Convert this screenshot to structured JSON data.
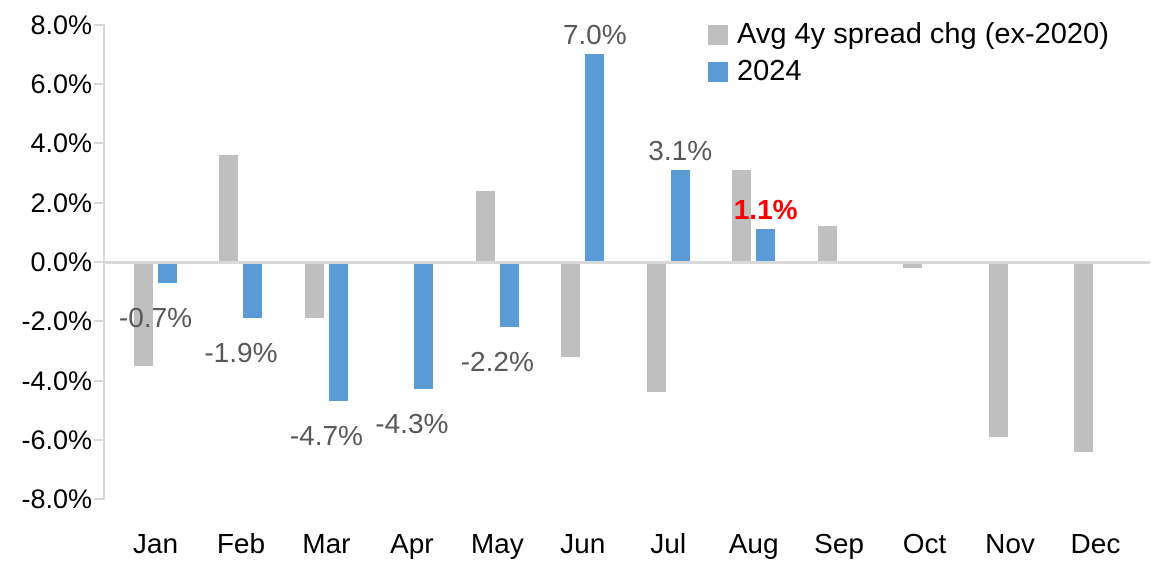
{
  "chart_data": {
    "type": "bar",
    "title": "",
    "xlabel": "",
    "ylabel": "",
    "categories": [
      "Jan",
      "Feb",
      "Mar",
      "Apr",
      "May",
      "Jun",
      "Jul",
      "Aug",
      "Sep",
      "Oct",
      "Nov",
      "Dec"
    ],
    "series": [
      {
        "name": "Avg 4y spread chg (ex-2020)",
        "color": "#bfbfbf",
        "values": [
          -3.5,
          3.6,
          -1.9,
          0.0,
          2.4,
          -3.2,
          -4.4,
          3.1,
          1.2,
          -0.2,
          -5.9,
          -6.4
        ]
      },
      {
        "name": "2024",
        "color": "#5b9bd5",
        "values": [
          -0.7,
          -1.9,
          -4.7,
          -4.3,
          -2.2,
          7.0,
          3.1,
          1.1,
          null,
          null,
          null,
          null
        ]
      }
    ],
    "data_labels": [
      {
        "category": "Jan",
        "series": "2024",
        "text": "-0.7%",
        "color": "#595959",
        "bold": false
      },
      {
        "category": "Feb",
        "series": "2024",
        "text": "-1.9%",
        "color": "#595959",
        "bold": false
      },
      {
        "category": "Mar",
        "series": "2024",
        "text": "-4.7%",
        "color": "#595959",
        "bold": false
      },
      {
        "category": "Apr",
        "series": "2024",
        "text": "-4.3%",
        "color": "#595959",
        "bold": false
      },
      {
        "category": "May",
        "series": "2024",
        "text": "-2.2%",
        "color": "#595959",
        "bold": false
      },
      {
        "category": "Jun",
        "series": "2024",
        "text": "7.0%",
        "color": "#595959",
        "bold": false
      },
      {
        "category": "Jul",
        "series": "2024",
        "text": "3.1%",
        "color": "#595959",
        "bold": false
      },
      {
        "category": "Aug",
        "series": "2024",
        "text": "1.1%",
        "color": "#ff0000",
        "bold": true
      }
    ],
    "y_axis": {
      "min": -8,
      "max": 8,
      "step": 2,
      "tick_labels": [
        "8.0%",
        "6.0%",
        "4.0%",
        "2.0%",
        "0.0%",
        "-2.0%",
        "-4.0%",
        "-6.0%",
        "-8.0%"
      ],
      "grid": false
    },
    "legend": {
      "position": "top-right",
      "entries": [
        {
          "label": "Avg 4y spread chg (ex-2020)",
          "color": "#bfbfbf"
        },
        {
          "label": "2024",
          "color": "#5b9bd5"
        }
      ]
    }
  },
  "colors": {
    "axis_line": "#d9d9d9",
    "data_label": "#595959",
    "highlight_label": "#ff0000",
    "axis_text": "#000000",
    "background": "#ffffff"
  }
}
